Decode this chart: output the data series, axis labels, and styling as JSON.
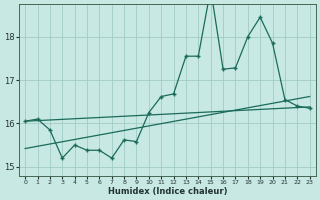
{
  "xlabel": "Humidex (Indice chaleur)",
  "bg_color": "#c8e8e4",
  "grid_color": "#a0ccc4",
  "line_color": "#1a6b5a",
  "xlim": [
    -0.5,
    23.5
  ],
  "ylim": [
    14.78,
    18.75
  ],
  "yticks": [
    15,
    16,
    17,
    18
  ],
  "xticks": [
    0,
    1,
    2,
    3,
    4,
    5,
    6,
    7,
    8,
    9,
    10,
    11,
    12,
    13,
    14,
    15,
    16,
    17,
    18,
    19,
    20,
    21,
    22,
    23
  ],
  "jagged_x": [
    0,
    1,
    2,
    3,
    4,
    5,
    6,
    7,
    8,
    9,
    10,
    11,
    12,
    13,
    14,
    15,
    16,
    17,
    18,
    19,
    20,
    21,
    22,
    23
  ],
  "jagged_y": [
    16.05,
    16.1,
    15.85,
    15.2,
    15.5,
    15.38,
    15.38,
    15.2,
    15.62,
    15.58,
    16.25,
    16.62,
    16.68,
    17.55,
    17.55,
    19.1,
    17.25,
    17.28,
    18.0,
    18.45,
    17.85,
    16.55,
    16.4,
    16.35
  ],
  "trend1_x": [
    0,
    23
  ],
  "trend1_y": [
    16.05,
    16.38
  ],
  "trend2_x": [
    0,
    23
  ],
  "trend2_y": [
    15.42,
    16.62
  ]
}
